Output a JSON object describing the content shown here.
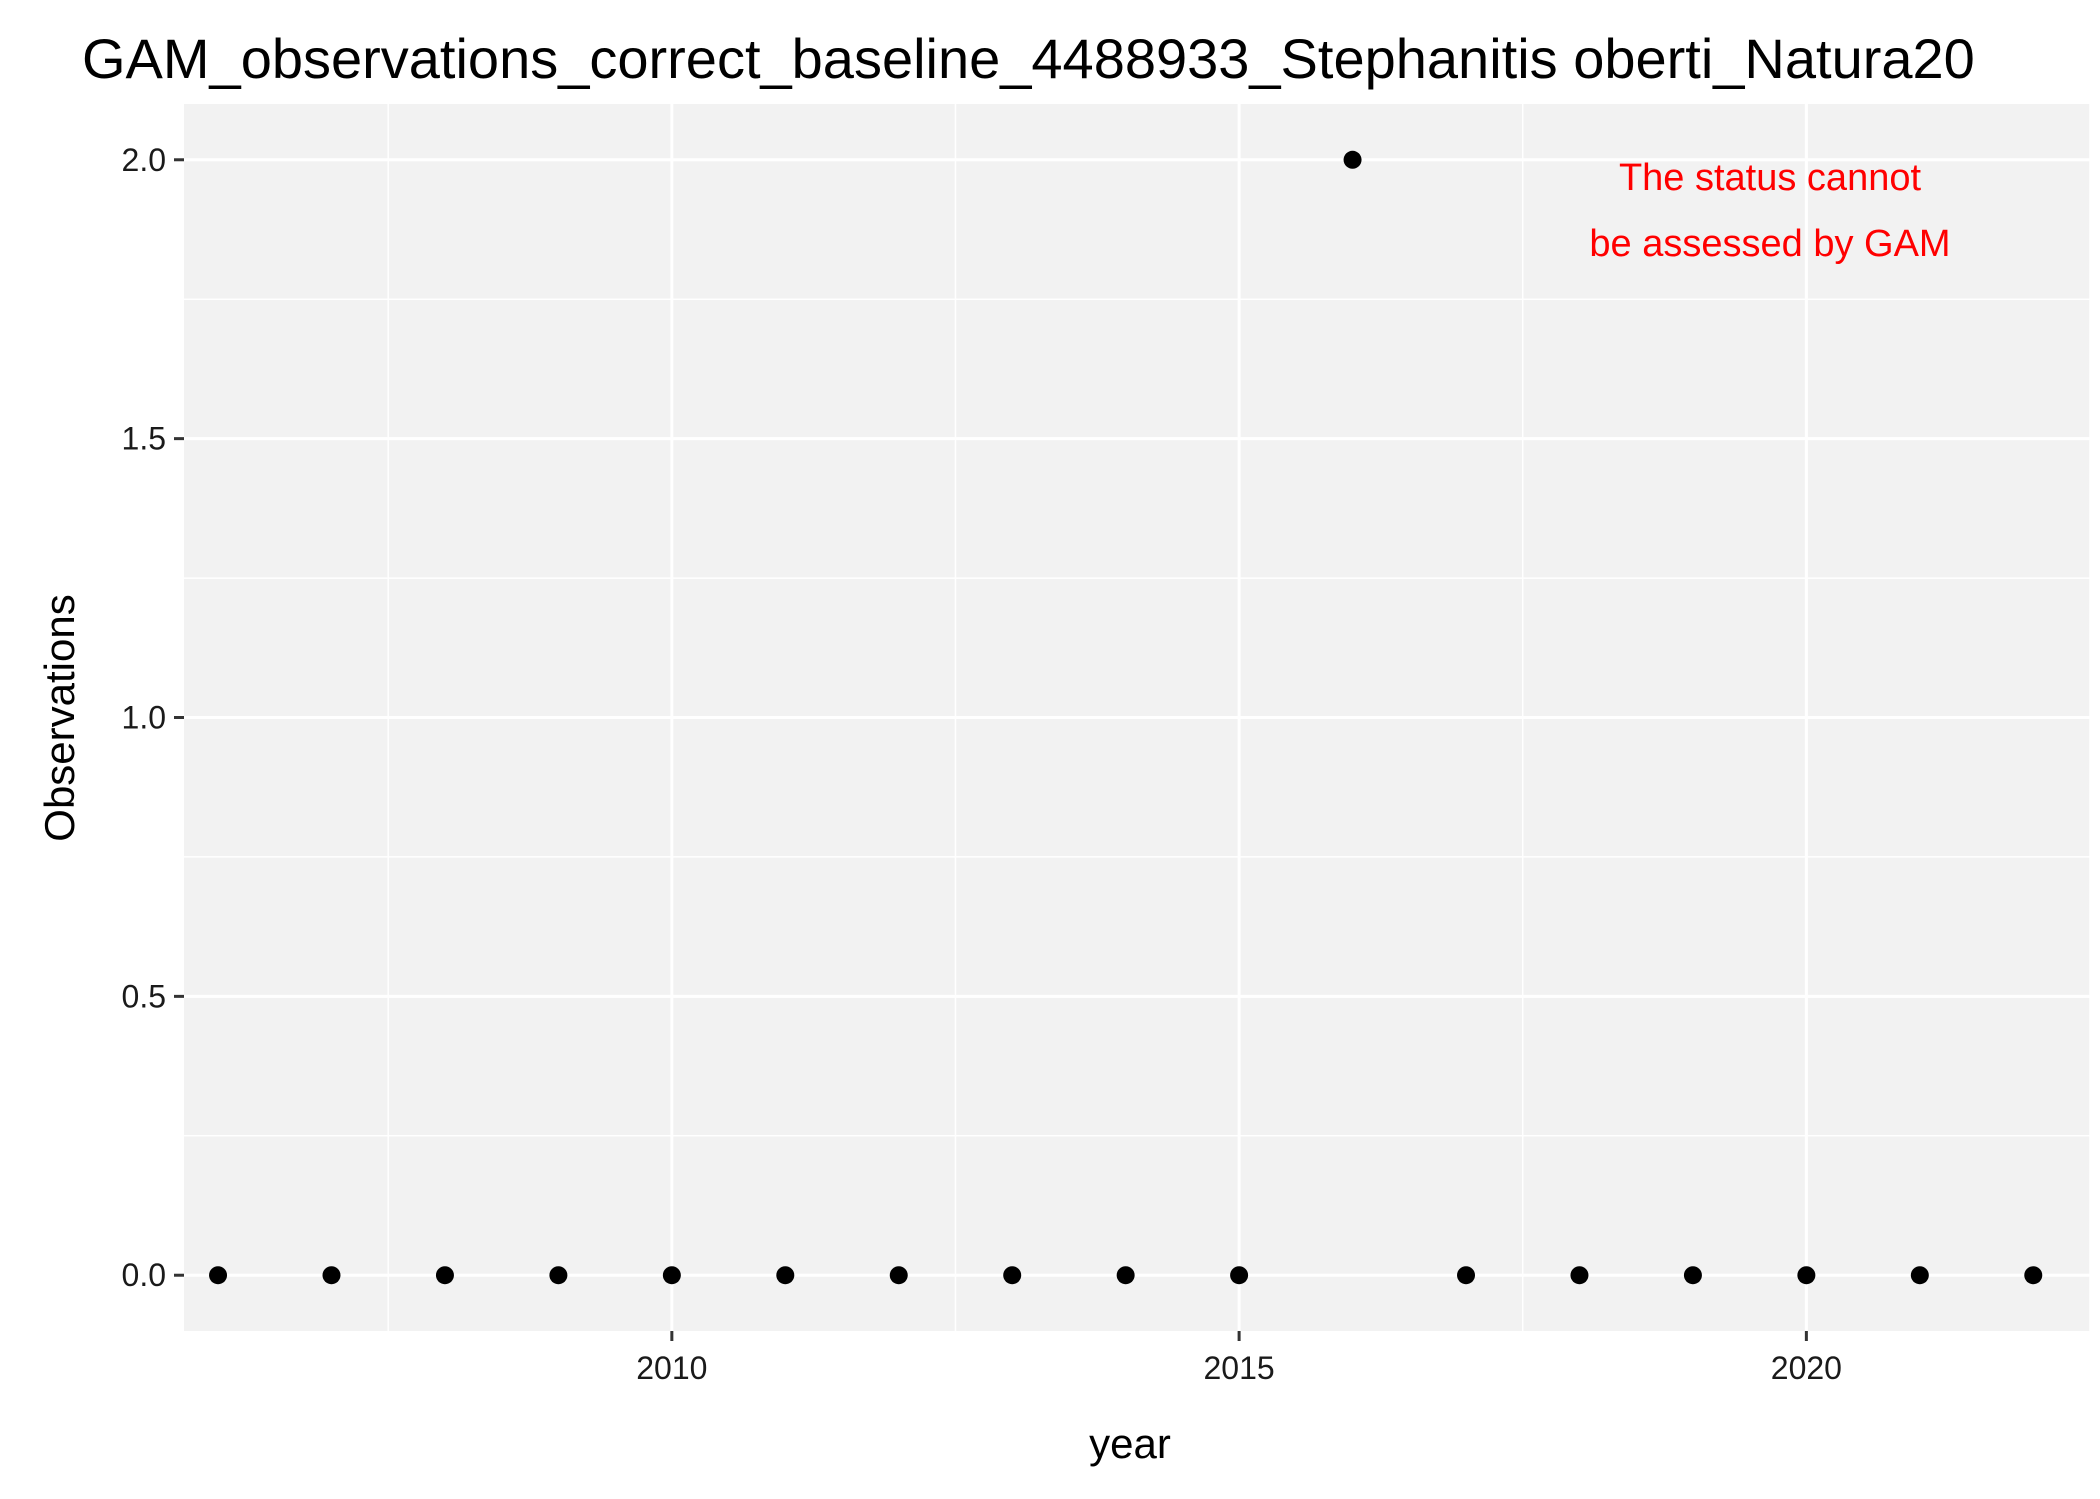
{
  "chart_data": {
    "type": "scatter",
    "title": "GAM_observations_correct_baseline_4488933_Stephanitis oberti_Natura20",
    "xlabel": "year",
    "ylabel": "Observations",
    "x_ticks": [
      2010,
      2015,
      2020
    ],
    "y_ticks": [
      "0.0",
      "0.5",
      "1.0",
      "1.5",
      "2.0"
    ],
    "xlim": [
      2005.7,
      2022.5
    ],
    "ylim": [
      -0.1,
      2.1
    ],
    "grid": true,
    "legend": "none",
    "points": [
      {
        "x": 2006,
        "y": 0
      },
      {
        "x": 2007,
        "y": 0
      },
      {
        "x": 2008,
        "y": 0
      },
      {
        "x": 2009,
        "y": 0
      },
      {
        "x": 2010,
        "y": 0
      },
      {
        "x": 2011,
        "y": 0
      },
      {
        "x": 2012,
        "y": 0
      },
      {
        "x": 2013,
        "y": 0
      },
      {
        "x": 2014,
        "y": 0
      },
      {
        "x": 2015,
        "y": 0
      },
      {
        "x": 2016,
        "y": 2
      },
      {
        "x": 2017,
        "y": 0
      },
      {
        "x": 2018,
        "y": 0
      },
      {
        "x": 2019,
        "y": 0
      },
      {
        "x": 2020,
        "y": 0
      },
      {
        "x": 2021,
        "y": 0
      },
      {
        "x": 2022,
        "y": 0
      }
    ],
    "annotation": {
      "lines": [
        "The status cannot",
        "be assessed by GAM"
      ],
      "color": "#ff0000"
    },
    "colors": {
      "panel_background": "#f2f2f2",
      "grid": "#ffffff",
      "points": "#000000"
    }
  }
}
